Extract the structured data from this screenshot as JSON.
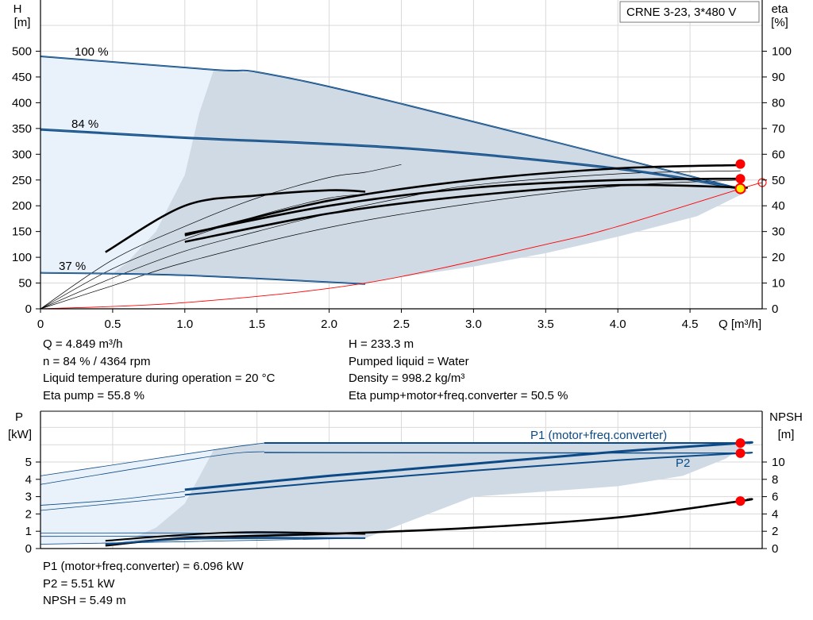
{
  "colors": {
    "curve_blue": "#0b4a86",
    "area_fill": "#d0dae5",
    "area_light": "#e9f2fb",
    "duty_point": "#ff0000",
    "duty_point_yellow": "#ffee00",
    "system_curve": "#ff0000"
  },
  "top": {
    "title": "CRNE 3-23, 3*480 V",
    "left_axis": {
      "name": "H",
      "unit": "[m]",
      "ticks": [
        0,
        50,
        100,
        150,
        200,
        250,
        300,
        350,
        400,
        450,
        500
      ],
      "range": [
        0,
        500
      ]
    },
    "right_axis": {
      "name": "eta",
      "unit": "[%]",
      "ticks": [
        0,
        10,
        20,
        30,
        40,
        50,
        60,
        70,
        80,
        90,
        100
      ]
    },
    "x_axis": {
      "name": "Q [m³/h]",
      "ticks": [
        "0",
        "0.5",
        "1.0",
        "1.5",
        "2.0",
        "2.5",
        "3.0",
        "3.5",
        "4.0",
        "4.5"
      ]
    },
    "speed_labels": [
      "100 %",
      "84 %",
      "37 %"
    ]
  },
  "bottom": {
    "left_axis": {
      "name": "P",
      "unit": "[kW]",
      "ticks": [
        0,
        1,
        2,
        3,
        4,
        5
      ]
    },
    "right_axis": {
      "name": "NPSH",
      "unit": "[m]",
      "ticks": [
        0,
        2,
        4,
        6,
        8,
        10
      ]
    },
    "series_labels": {
      "p1": "P1 (motor+freq.converter)",
      "p2": "P2"
    }
  },
  "info_top_left": [
    "Q = 4.849 m³/h",
    "n = 84 % / 4364 rpm",
    "Liquid temperature during operation = 20 °C",
    "Eta pump = 55.8 %"
  ],
  "info_top_right": [
    "H = 233.3 m",
    "Pumped liquid = Water",
    "Density = 998.2 kg/m³",
    "Eta pump+motor+freq.converter = 50.5 %"
  ],
  "info_bottom": [
    "P1 (motor+freq.converter) = 6.096 kW",
    "P2 = 5.51 kW",
    "NPSH = 5.49 m"
  ],
  "chart_data": [
    {
      "type": "line",
      "title": "CRNE 3-23, 3*480 V",
      "xlabel": "Q [m³/h]",
      "ylabel": "H [m]",
      "y2label": "eta [%]",
      "xlim": [
        0,
        5.0
      ],
      "ylim": [
        0,
        500
      ],
      "y2lim": [
        0,
        100
      ],
      "series": [
        {
          "name": "100 %",
          "axis": "H",
          "points": [
            [
              0,
              490
            ],
            [
              1.2,
              464
            ],
            [
              1.55,
              457
            ],
            [
              2.5,
              398
            ],
            [
              4.85,
              233
            ]
          ]
        },
        {
          "name": "84 %",
          "axis": "H",
          "points": [
            [
              0,
              348
            ],
            [
              1.0,
              332
            ],
            [
              2.5,
              312
            ],
            [
              4.0,
              272
            ],
            [
              4.85,
              233
            ]
          ]
        },
        {
          "name": "37 %",
          "axis": "H",
          "points": [
            [
              0,
              70
            ],
            [
              1.0,
              65
            ],
            [
              2.25,
              48
            ]
          ]
        },
        {
          "axis": "H",
          "note": "system curve",
          "points": [
            [
              0,
              0
            ],
            [
              1.0,
              12
            ],
            [
              2.25,
              50
            ],
            [
              3.5,
              125
            ],
            [
              4.0,
              160
            ],
            [
              4.85,
              233
            ],
            [
              5.0,
              245
            ]
          ]
        },
        {
          "axis": "eta",
          "points": [
            [
              0.45,
              22
            ],
            [
              1.0,
              40
            ],
            [
              1.5,
              44
            ],
            [
              2.0,
              46
            ],
            [
              2.25,
              45.5
            ]
          ]
        },
        {
          "axis": "eta",
          "points": [
            [
              1.0,
              29
            ],
            [
              2.0,
              40
            ],
            [
              3.0,
              47
            ],
            [
              4.0,
              50
            ],
            [
              4.85,
              50.5
            ]
          ]
        },
        {
          "axis": "eta",
          "points": [
            [
              1.0,
              28.5
            ],
            [
              2.0,
              42
            ],
            [
              3.0,
              50
            ],
            [
              4.0,
              54.5
            ],
            [
              4.85,
              55.8
            ]
          ]
        },
        {
          "axis": "eta",
          "points": [
            [
              1.0,
              26
            ],
            [
              2.0,
              37
            ],
            [
              3.0,
              44
            ],
            [
              4.0,
              48
            ],
            [
              4.9,
              47
            ]
          ]
        }
      ],
      "duty_point": {
        "Q": 4.849,
        "H": 233.3,
        "eta_total": 50.5,
        "eta_pump": 55.8
      }
    },
    {
      "type": "line",
      "xlabel": "Q [m³/h]",
      "ylabel": "P [kW]",
      "y2label": "NPSH [m]",
      "xlim": [
        0,
        5.0
      ],
      "ylim": [
        0,
        6.3
      ],
      "y2lim": [
        0,
        12.6
      ],
      "series": [
        {
          "name": "P1 (motor+freq.converter)",
          "axis": "P",
          "points": [
            [
              1.0,
              3.4
            ],
            [
              2.0,
              4.2
            ],
            [
              3.0,
              4.9
            ],
            [
              4.0,
              5.6
            ],
            [
              4.85,
              6.096
            ],
            [
              4.9,
              6.1
            ]
          ]
        },
        {
          "name": "P2",
          "axis": "P",
          "points": [
            [
              1.0,
              3.1
            ],
            [
              2.0,
              3.85
            ],
            [
              3.0,
              4.5
            ],
            [
              4.0,
              5.1
            ],
            [
              4.85,
              5.51
            ],
            [
              4.9,
              5.52
            ]
          ]
        },
        {
          "axis": "NPSH",
          "points": [
            [
              0.45,
              0.35
            ],
            [
              1.0,
              1.2
            ],
            [
              2.0,
              1.7
            ],
            [
              3.0,
              2.4
            ],
            [
              4.0,
              3.6
            ],
            [
              4.85,
              5.49
            ],
            [
              4.9,
              5.7
            ]
          ]
        }
      ],
      "duty_point": {
        "P1": 6.096,
        "P2": 5.51,
        "NPSH": 5.49
      }
    }
  ]
}
